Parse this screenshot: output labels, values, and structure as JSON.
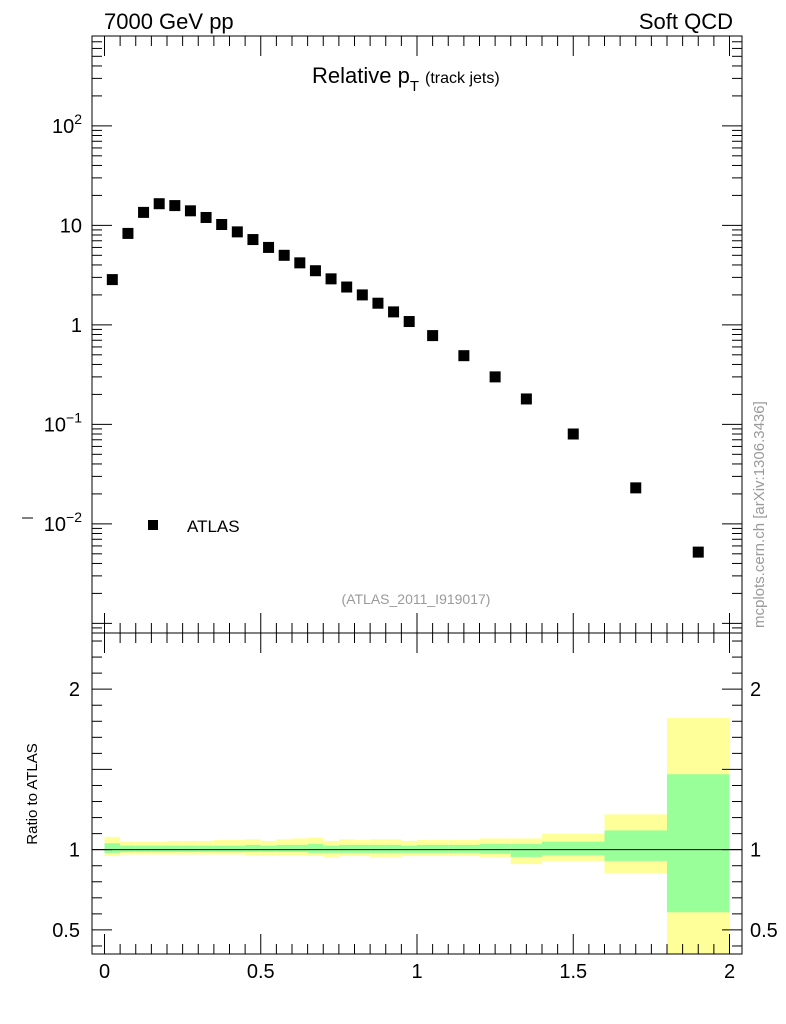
{
  "header": {
    "left": "7000 GeV pp",
    "right": "Soft QCD"
  },
  "side_label": "mcplots.cern.ch [arXiv:1306.3436]",
  "chart_data": [
    {
      "type": "scatter",
      "title_main": "Relative p",
      "title_sub": "T",
      "title_suffix": "(track jets)",
      "analysis_label": "(ATLAS_2011_I919017)",
      "yscale": "log",
      "ylim": [
        0.0008,
        800
      ],
      "xlim": [
        -0.04,
        2.04
      ],
      "y_ticks": [
        {
          "value": 0.01,
          "base": "10",
          "exp": "−2"
        },
        {
          "value": 0.1,
          "base": "10",
          "exp": "−1"
        },
        {
          "value": 1,
          "label": "1"
        },
        {
          "value": 10,
          "label": "10"
        },
        {
          "value": 100,
          "base": "10",
          "exp": "2"
        }
      ],
      "legend": {
        "placement": "bottom-left",
        "entries": [
          "ATLAS"
        ]
      },
      "series": [
        {
          "name": "ATLAS",
          "color": "#000000",
          "marker": "square",
          "x": [
            0.025,
            0.075,
            0.125,
            0.175,
            0.225,
            0.275,
            0.325,
            0.375,
            0.425,
            0.475,
            0.525,
            0.575,
            0.625,
            0.675,
            0.725,
            0.775,
            0.825,
            0.875,
            0.925,
            0.975,
            1.05,
            1.15,
            1.25,
            1.35,
            1.5,
            1.7,
            1.9
          ],
          "y": [
            2.85,
            8.3,
            13.5,
            16.5,
            15.8,
            14.0,
            12.0,
            10.2,
            8.6,
            7.2,
            6.0,
            5.0,
            4.2,
            3.5,
            2.9,
            2.4,
            2.0,
            1.65,
            1.35,
            1.08,
            0.78,
            0.49,
            0.3,
            0.18,
            0.08,
            0.023,
            0.0052
          ]
        }
      ]
    },
    {
      "type": "area",
      "ylabel": "Ratio to ATLAS",
      "xlim": [
        -0.04,
        2.04
      ],
      "ylim": [
        0.35,
        2.35
      ],
      "x_ticks": [
        {
          "value": 0,
          "label": "0"
        },
        {
          "value": 0.5,
          "label": "0.5"
        },
        {
          "value": 1,
          "label": "1"
        },
        {
          "value": 1.5,
          "label": "1.5"
        },
        {
          "value": 2,
          "label": "2"
        }
      ],
      "y_ticks": [
        {
          "value": 0.5,
          "label": "0.5"
        },
        {
          "value": 1,
          "label": "1"
        },
        {
          "value": 2,
          "label": "2"
        }
      ],
      "reference_line": 1,
      "band_colors": {
        "outer": "#ffff99",
        "inner": "#99ff99"
      },
      "bins": [
        {
          "x0": 0.0,
          "x1": 0.05,
          "outer": [
            0.96,
            1.08
          ],
          "inner": [
            0.98,
            1.04
          ]
        },
        {
          "x0": 0.05,
          "x1": 0.1,
          "outer": [
            0.97,
            1.05
          ],
          "inner": [
            0.985,
            1.025
          ]
        },
        {
          "x0": 0.1,
          "x1": 0.15,
          "outer": [
            0.97,
            1.05
          ],
          "inner": [
            0.985,
            1.025
          ]
        },
        {
          "x0": 0.15,
          "x1": 0.2,
          "outer": [
            0.97,
            1.05
          ],
          "inner": [
            0.985,
            1.025
          ]
        },
        {
          "x0": 0.2,
          "x1": 0.25,
          "outer": [
            0.97,
            1.055
          ],
          "inner": [
            0.985,
            1.025
          ]
        },
        {
          "x0": 0.25,
          "x1": 0.3,
          "outer": [
            0.97,
            1.055
          ],
          "inner": [
            0.985,
            1.025
          ]
        },
        {
          "x0": 0.3,
          "x1": 0.35,
          "outer": [
            0.97,
            1.055
          ],
          "inner": [
            0.985,
            1.025
          ]
        },
        {
          "x0": 0.35,
          "x1": 0.4,
          "outer": [
            0.97,
            1.06
          ],
          "inner": [
            0.985,
            1.025
          ]
        },
        {
          "x0": 0.4,
          "x1": 0.45,
          "outer": [
            0.97,
            1.06
          ],
          "inner": [
            0.985,
            1.025
          ]
        },
        {
          "x0": 0.45,
          "x1": 0.5,
          "outer": [
            0.965,
            1.065
          ],
          "inner": [
            0.985,
            1.03
          ]
        },
        {
          "x0": 0.5,
          "x1": 0.55,
          "outer": [
            0.965,
            1.055
          ],
          "inner": [
            0.985,
            1.025
          ]
        },
        {
          "x0": 0.55,
          "x1": 0.6,
          "outer": [
            0.965,
            1.065
          ],
          "inner": [
            0.985,
            1.03
          ]
        },
        {
          "x0": 0.6,
          "x1": 0.65,
          "outer": [
            0.965,
            1.07
          ],
          "inner": [
            0.985,
            1.03
          ]
        },
        {
          "x0": 0.65,
          "x1": 0.7,
          "outer": [
            0.96,
            1.075
          ],
          "inner": [
            0.98,
            1.035
          ]
        },
        {
          "x0": 0.7,
          "x1": 0.75,
          "outer": [
            0.955,
            1.055
          ],
          "inner": [
            0.98,
            1.025
          ]
        },
        {
          "x0": 0.75,
          "x1": 0.8,
          "outer": [
            0.96,
            1.065
          ],
          "inner": [
            0.98,
            1.03
          ]
        },
        {
          "x0": 0.8,
          "x1": 0.85,
          "outer": [
            0.96,
            1.06
          ],
          "inner": [
            0.98,
            1.03
          ]
        },
        {
          "x0": 0.85,
          "x1": 0.9,
          "outer": [
            0.955,
            1.065
          ],
          "inner": [
            0.98,
            1.03
          ]
        },
        {
          "x0": 0.9,
          "x1": 0.95,
          "outer": [
            0.955,
            1.065
          ],
          "inner": [
            0.98,
            1.03
          ]
        },
        {
          "x0": 0.95,
          "x1": 1.0,
          "outer": [
            0.96,
            1.055
          ],
          "inner": [
            0.98,
            1.025
          ]
        },
        {
          "x0": 1.0,
          "x1": 1.1,
          "outer": [
            0.96,
            1.06
          ],
          "inner": [
            0.98,
            1.03
          ]
        },
        {
          "x0": 1.1,
          "x1": 1.2,
          "outer": [
            0.96,
            1.06
          ],
          "inner": [
            0.98,
            1.03
          ]
        },
        {
          "x0": 1.2,
          "x1": 1.3,
          "outer": [
            0.955,
            1.07
          ],
          "inner": [
            0.975,
            1.035
          ]
        },
        {
          "x0": 1.3,
          "x1": 1.4,
          "outer": [
            0.91,
            1.07
          ],
          "inner": [
            0.955,
            1.035
          ]
        },
        {
          "x0": 1.4,
          "x1": 1.6,
          "outer": [
            0.93,
            1.1
          ],
          "inner": [
            0.965,
            1.05
          ]
        },
        {
          "x0": 1.6,
          "x1": 1.8,
          "outer": [
            0.855,
            1.22
          ],
          "inner": [
            0.93,
            1.12
          ]
        },
        {
          "x0": 1.8,
          "x1": 2.0,
          "outer": [
            0.35,
            1.82
          ],
          "inner": [
            0.61,
            1.47
          ]
        }
      ]
    }
  ]
}
